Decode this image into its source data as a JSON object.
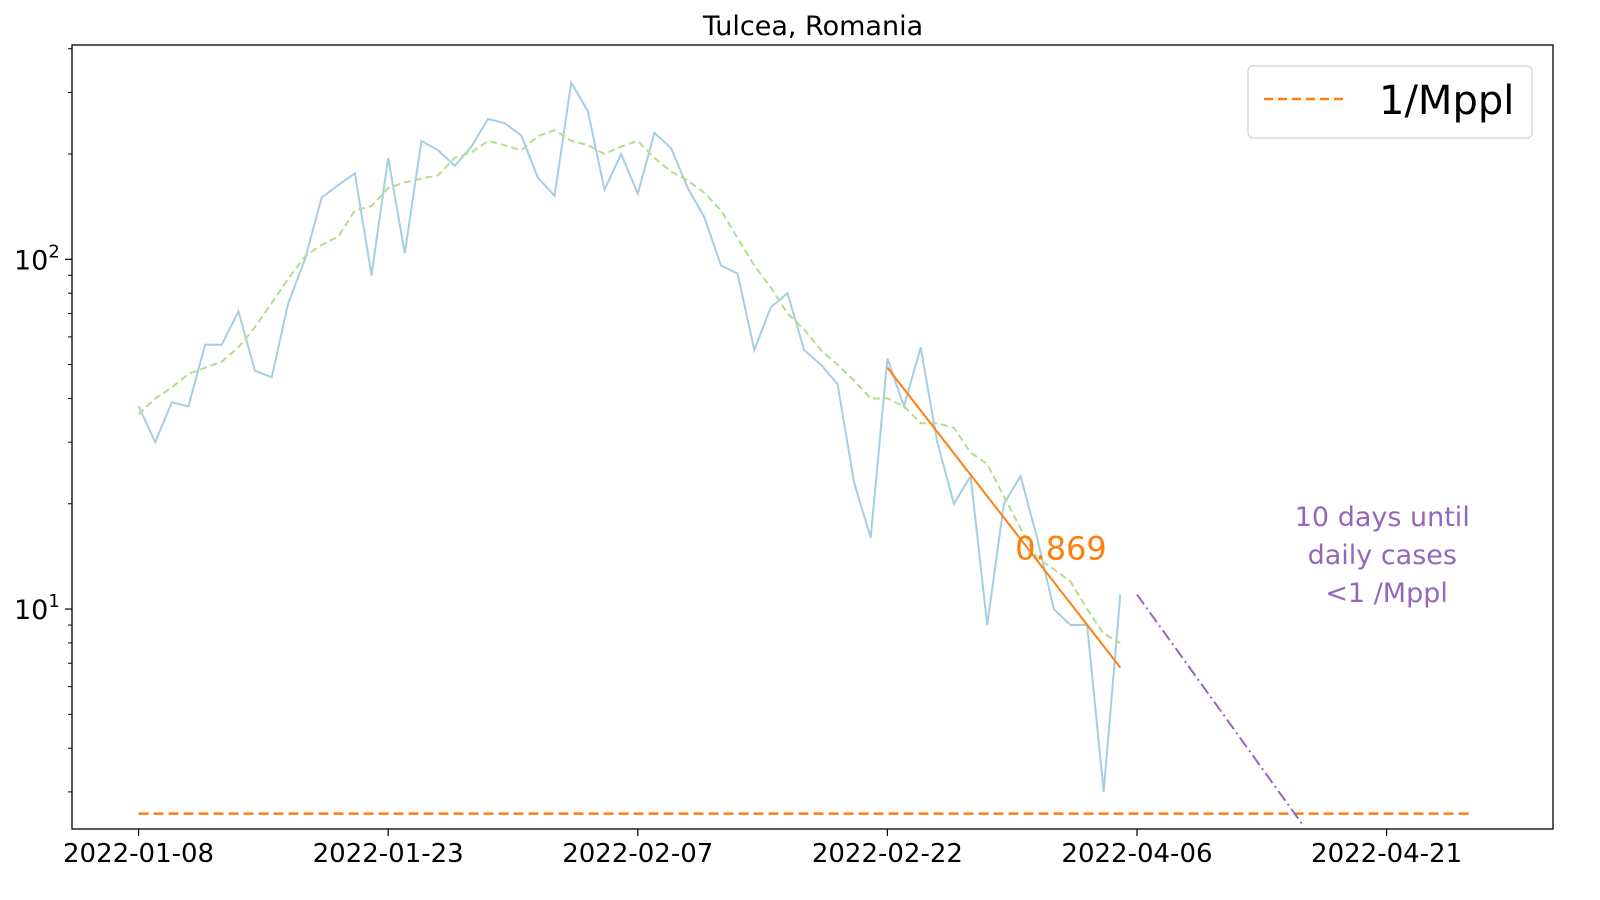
{
  "chart_data": {
    "type": "line",
    "title": "Tulcea, Romania",
    "xlabel": "",
    "ylabel": "",
    "y_scale": "log",
    "ylim": [
      2.35,
      410
    ],
    "xlim_days": [
      -4,
      85
    ],
    "x_tick_labels": [
      "2022-01-08",
      "2022-01-23",
      "2022-02-07",
      "2022-02-22",
      "2022-04-06",
      "2022-04-21"
    ],
    "x_tick_days": [
      0,
      15,
      30,
      45,
      60,
      75
    ],
    "y_ticks": [
      {
        "value": 10,
        "base": "10",
        "exp": "1"
      },
      {
        "value": 100,
        "base": "10",
        "exp": "2"
      }
    ],
    "legend": {
      "position": "top-right",
      "entries": [
        {
          "label": "1/Mppl",
          "color": "#ff7f0e",
          "style": "dashed"
        }
      ]
    },
    "series": [
      {
        "role": "daily",
        "color": "#a6cee3",
        "style": "solid",
        "values": [
          38,
          30,
          39,
          38,
          57,
          57,
          71,
          48,
          46,
          75,
          100,
          150,
          163,
          176,
          90,
          195,
          104,
          218,
          205,
          185,
          210,
          252,
          245,
          226,
          171,
          152,
          320,
          265,
          158,
          200,
          154,
          230,
          208,
          160,
          132,
          96,
          91,
          55,
          73,
          80,
          55,
          50,
          44,
          23,
          16,
          52,
          38,
          56,
          30,
          20,
          24,
          9,
          20,
          24,
          16,
          10,
          9,
          9,
          3,
          11
        ]
      },
      {
        "role": "rolling-average",
        "color": "#b2df8a",
        "style": "dashed",
        "values": [
          36,
          40,
          43,
          47,
          49,
          51,
          56,
          64,
          75,
          88,
          102,
          110,
          116,
          138,
          142,
          160,
          166,
          170,
          174,
          195,
          202,
          218,
          212,
          205,
          225,
          234,
          218,
          212,
          200,
          210,
          218,
          195,
          178,
          168,
          155,
          138,
          115,
          96,
          83,
          70,
          63,
          55,
          50,
          45,
          40,
          40,
          38,
          34,
          34,
          33,
          28,
          26,
          21,
          17,
          14,
          13,
          12,
          10,
          8.5,
          8
        ]
      }
    ],
    "trend_line": {
      "color": "#ff7f0e",
      "start_day": 45,
      "end_day": 59,
      "start_value": 49,
      "end_value": 6.8,
      "label": "0.869"
    },
    "projection_line": {
      "color": "#9467bd",
      "start_day": 60,
      "end_day": 70,
      "start_value": 11,
      "end_value": 2.4
    },
    "threshold_line": {
      "value": 2.6,
      "start_day": 0,
      "end_day": 80,
      "color": "#ff7f0e",
      "label": "1/Mppl"
    },
    "annotation": {
      "lines": [
        "10 days until",
        "daily cases",
        "<1 /Mppl"
      ],
      "color": "#9467bd",
      "day": 75,
      "value": 14
    }
  }
}
